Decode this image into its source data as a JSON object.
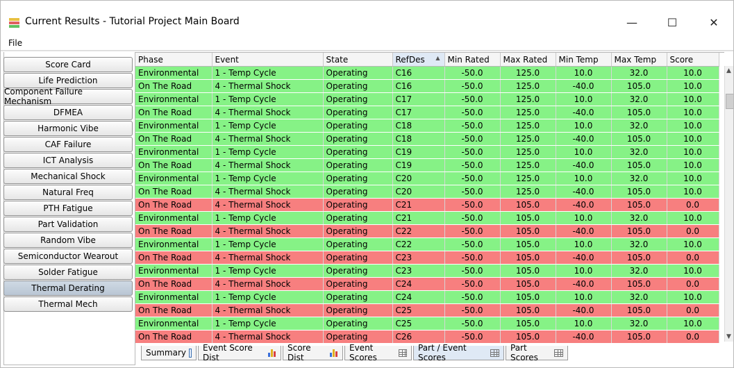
{
  "window": {
    "title": "Current Results - Tutorial Project Main Board",
    "minimize_glyph": "—",
    "maximize_glyph": "☐",
    "close_glyph": "✕"
  },
  "menu": {
    "file": "File"
  },
  "sidebar": {
    "items": [
      "Score Card",
      "Life Prediction",
      "Component Failure Mechanism",
      "DFMEA",
      "Harmonic Vibe",
      "CAF Failure",
      "ICT Analysis",
      "Mechanical Shock",
      "Natural Freq",
      "PTH Fatigue",
      "Part Validation",
      "Random Vibe",
      "Semiconductor Wearout",
      "Solder Fatigue",
      "Thermal Derating",
      "Thermal Mech"
    ],
    "active": "Thermal Derating"
  },
  "table": {
    "columns": [
      "Phase",
      "Event",
      "State",
      "RefDes",
      "Min Rated",
      "Max Rated",
      "Min Temp",
      "Max Temp",
      "Score"
    ],
    "sort_column": "RefDes",
    "sort_glyph": "▲",
    "rows": [
      [
        "Environmental",
        "1 - Temp Cycle",
        "Operating",
        "C16",
        "-50.0",
        "125.0",
        "10.0",
        "32.0",
        "10.0"
      ],
      [
        "On The Road",
        "4 - Thermal Shock",
        "Operating",
        "C16",
        "-50.0",
        "125.0",
        "-40.0",
        "105.0",
        "10.0"
      ],
      [
        "Environmental",
        "1 - Temp Cycle",
        "Operating",
        "C17",
        "-50.0",
        "125.0",
        "10.0",
        "32.0",
        "10.0"
      ],
      [
        "On The Road",
        "4 - Thermal Shock",
        "Operating",
        "C17",
        "-50.0",
        "125.0",
        "-40.0",
        "105.0",
        "10.0"
      ],
      [
        "Environmental",
        "1 - Temp Cycle",
        "Operating",
        "C18",
        "-50.0",
        "125.0",
        "10.0",
        "32.0",
        "10.0"
      ],
      [
        "On The Road",
        "4 - Thermal Shock",
        "Operating",
        "C18",
        "-50.0",
        "125.0",
        "-40.0",
        "105.0",
        "10.0"
      ],
      [
        "Environmental",
        "1 - Temp Cycle",
        "Operating",
        "C19",
        "-50.0",
        "125.0",
        "10.0",
        "32.0",
        "10.0"
      ],
      [
        "On The Road",
        "4 - Thermal Shock",
        "Operating",
        "C19",
        "-50.0",
        "125.0",
        "-40.0",
        "105.0",
        "10.0"
      ],
      [
        "Environmental",
        "1 - Temp Cycle",
        "Operating",
        "C20",
        "-50.0",
        "125.0",
        "10.0",
        "32.0",
        "10.0"
      ],
      [
        "On The Road",
        "4 - Thermal Shock",
        "Operating",
        "C20",
        "-50.0",
        "125.0",
        "-40.0",
        "105.0",
        "10.0"
      ],
      [
        "On The Road",
        "4 - Thermal Shock",
        "Operating",
        "C21",
        "-50.0",
        "105.0",
        "-40.0",
        "105.0",
        "0.0"
      ],
      [
        "Environmental",
        "1 - Temp Cycle",
        "Operating",
        "C21",
        "-50.0",
        "105.0",
        "10.0",
        "32.0",
        "10.0"
      ],
      [
        "On The Road",
        "4 - Thermal Shock",
        "Operating",
        "C22",
        "-50.0",
        "105.0",
        "-40.0",
        "105.0",
        "0.0"
      ],
      [
        "Environmental",
        "1 - Temp Cycle",
        "Operating",
        "C22",
        "-50.0",
        "105.0",
        "10.0",
        "32.0",
        "10.0"
      ],
      [
        "On The Road",
        "4 - Thermal Shock",
        "Operating",
        "C23",
        "-50.0",
        "105.0",
        "-40.0",
        "105.0",
        "0.0"
      ],
      [
        "Environmental",
        "1 - Temp Cycle",
        "Operating",
        "C23",
        "-50.0",
        "105.0",
        "10.0",
        "32.0",
        "10.0"
      ],
      [
        "On The Road",
        "4 - Thermal Shock",
        "Operating",
        "C24",
        "-50.0",
        "105.0",
        "-40.0",
        "105.0",
        "0.0"
      ],
      [
        "Environmental",
        "1 - Temp Cycle",
        "Operating",
        "C24",
        "-50.0",
        "105.0",
        "10.0",
        "32.0",
        "10.0"
      ],
      [
        "On The Road",
        "4 - Thermal Shock",
        "Operating",
        "C25",
        "-50.0",
        "105.0",
        "-40.0",
        "105.0",
        "0.0"
      ],
      [
        "Environmental",
        "1 - Temp Cycle",
        "Operating",
        "C25",
        "-50.0",
        "105.0",
        "10.0",
        "32.0",
        "10.0"
      ],
      [
        "On The Road",
        "4 - Thermal Shock",
        "Operating",
        "C26",
        "-50.0",
        "105.0",
        "-40.0",
        "105.0",
        "0.0"
      ]
    ],
    "row_status": [
      "pass",
      "pass",
      "pass",
      "pass",
      "pass",
      "pass",
      "pass",
      "pass",
      "pass",
      "pass",
      "fail",
      "pass",
      "fail",
      "pass",
      "fail",
      "pass",
      "fail",
      "pass",
      "fail",
      "pass",
      "fail"
    ]
  },
  "colors": {
    "pass": "#86f286",
    "fail": "#f77f7f",
    "active_tab": "#dfe9f5"
  },
  "tabs": [
    {
      "label": "Summary",
      "icon": "document-icon"
    },
    {
      "label": "Event Score Dist",
      "icon": "bar-chart-icon"
    },
    {
      "label": "Score Dist",
      "icon": "bar-chart-icon"
    },
    {
      "label": "Event Scores",
      "icon": "table-icon"
    },
    {
      "label": "Part / Event Scores",
      "icon": "table-icon"
    },
    {
      "label": "Part Scores",
      "icon": "table-icon"
    }
  ],
  "active_tab": "Part / Event Scores"
}
